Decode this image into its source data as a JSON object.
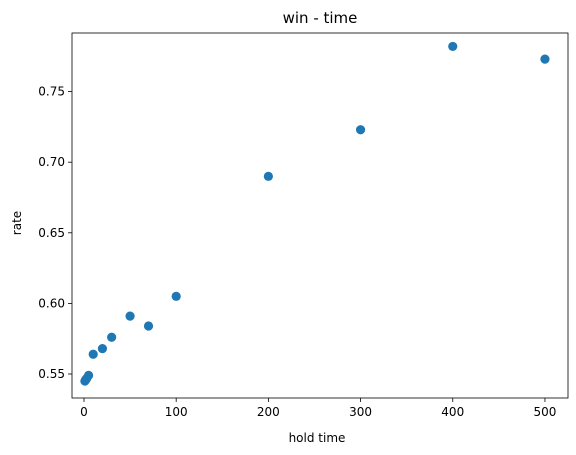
{
  "chart_data": {
    "type": "scatter",
    "title": "win - time",
    "xlabel": "hold time",
    "ylabel": "rate",
    "xlim": [
      -13,
      525
    ],
    "ylim": [
      0.533,
      0.7915
    ],
    "grid": false,
    "marker_color": "#1f77b4",
    "x_ticks": [
      {
        "value": 0,
        "label": "0"
      },
      {
        "value": 100,
        "label": "100"
      },
      {
        "value": 200,
        "label": "200"
      },
      {
        "value": 300,
        "label": "300"
      },
      {
        "value": 400,
        "label": "400"
      },
      {
        "value": 500,
        "label": "500"
      }
    ],
    "y_ticks": [
      {
        "value": 0.55,
        "label": "0.55"
      },
      {
        "value": 0.6,
        "label": "0.60"
      },
      {
        "value": 0.65,
        "label": "0.65"
      },
      {
        "value": 0.7,
        "label": "0.70"
      },
      {
        "value": 0.75,
        "label": "0.75"
      }
    ],
    "points": [
      {
        "x": 1,
        "y": 0.545
      },
      {
        "x": 2,
        "y": 0.546
      },
      {
        "x": 3,
        "y": 0.547
      },
      {
        "x": 5,
        "y": 0.549
      },
      {
        "x": 10,
        "y": 0.564
      },
      {
        "x": 20,
        "y": 0.568
      },
      {
        "x": 30,
        "y": 0.576
      },
      {
        "x": 50,
        "y": 0.591
      },
      {
        "x": 70,
        "y": 0.584
      },
      {
        "x": 100,
        "y": 0.605
      },
      {
        "x": 200,
        "y": 0.69
      },
      {
        "x": 300,
        "y": 0.723
      },
      {
        "x": 400,
        "y": 0.782
      },
      {
        "x": 500,
        "y": 0.773
      }
    ]
  }
}
